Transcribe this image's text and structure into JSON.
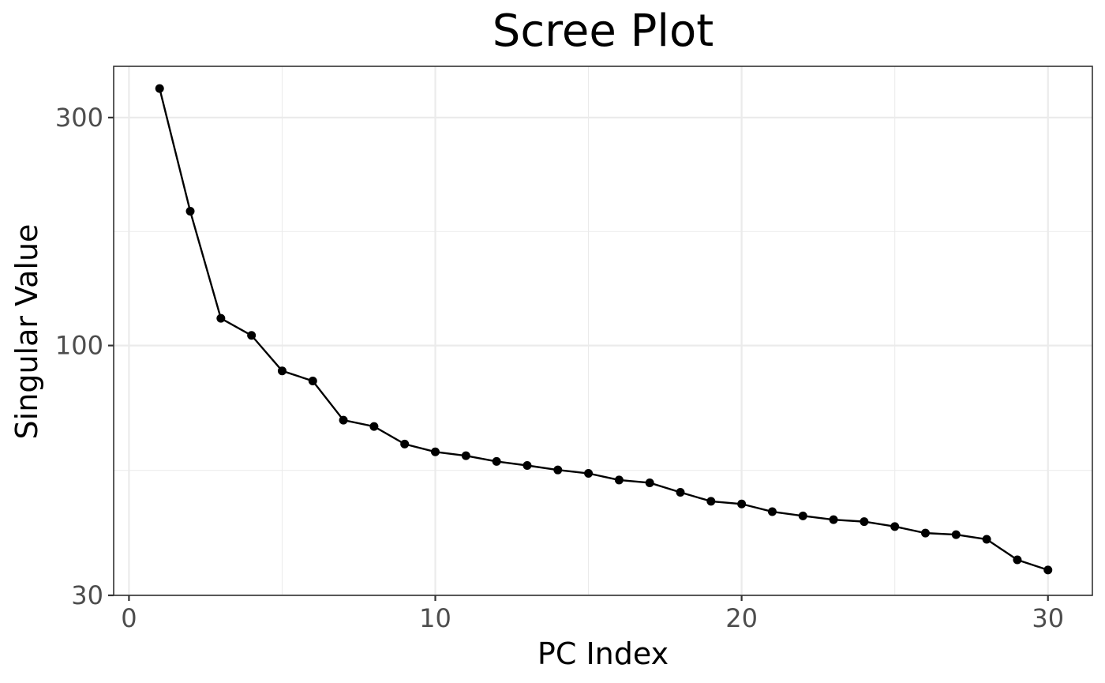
{
  "chart_data": {
    "type": "line",
    "title": "Scree Plot",
    "xlabel": "PC Index",
    "ylabel": "Singular Value",
    "x_scale": "linear",
    "y_scale": "log10",
    "xlim": [
      -0.5,
      31.45
    ],
    "ylim": [
      30,
      384
    ],
    "x_ticks": [
      0,
      10,
      20,
      30
    ],
    "x_minor_ticks": [
      5,
      15,
      25
    ],
    "y_ticks": [
      30,
      100,
      300
    ],
    "y_minor_ticks": [
      54.8,
      173.2
    ],
    "x_tick_labels": [
      "0",
      "10",
      "20",
      "30"
    ],
    "y_tick_labels": [
      "30",
      "100",
      "300"
    ],
    "grid": true,
    "series": [
      {
        "x": [
          1,
          2,
          3,
          4,
          5,
          6,
          7,
          8,
          9,
          10,
          11,
          12,
          13,
          14,
          15,
          16,
          17,
          18,
          19,
          20,
          21,
          22,
          23,
          24,
          25,
          26,
          27,
          28,
          29,
          30
        ],
        "values": [
          345,
          191,
          114,
          105,
          88.5,
          84.3,
          69.8,
          67.7,
          62.2,
          59.9,
          58.8,
          57.2,
          56.1,
          54.9,
          54.0,
          52.3,
          51.6,
          49.3,
          47.2,
          46.6,
          44.9,
          44.0,
          43.2,
          42.8,
          41.8,
          40.5,
          40.2,
          39.3,
          35.6,
          33.9
        ]
      }
    ]
  }
}
